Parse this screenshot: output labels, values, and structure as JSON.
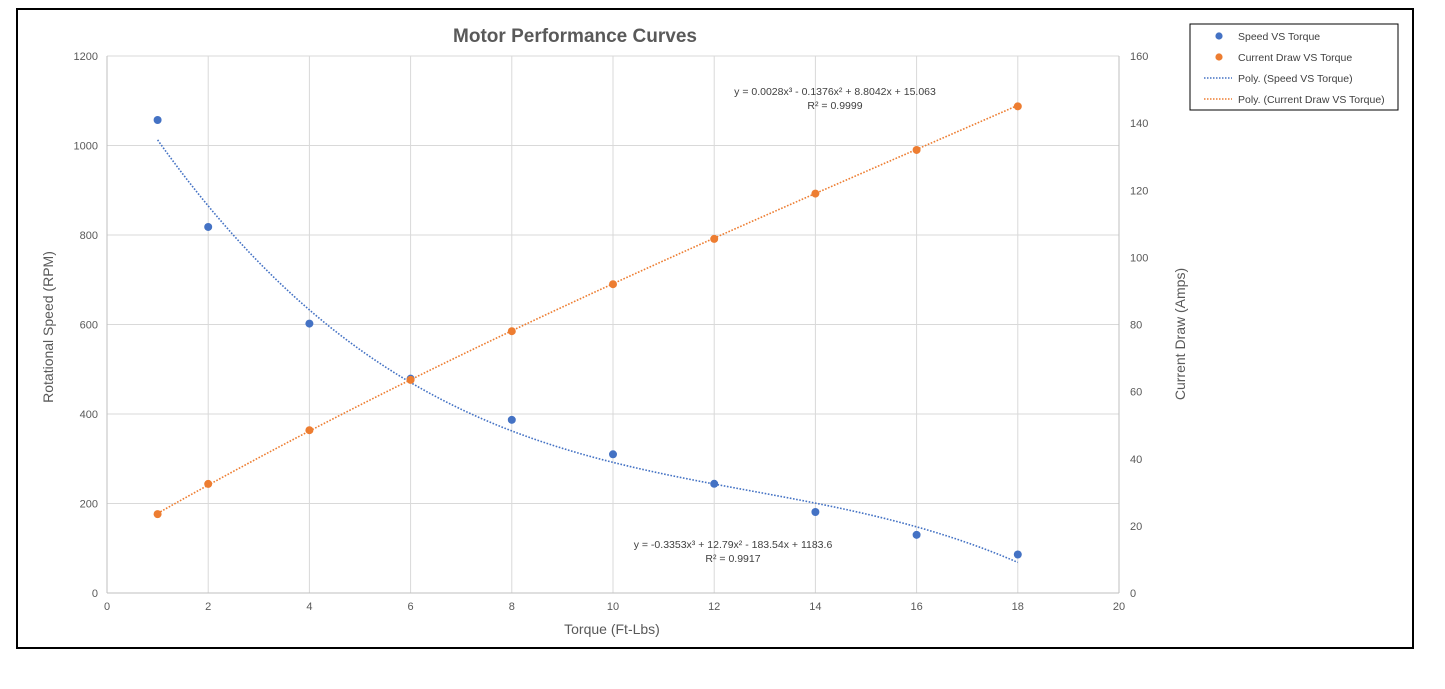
{
  "chart_data": {
    "type": "scatter",
    "title": "Motor Performance Curves",
    "xlabel": "Torque (Ft-Lbs)",
    "ylabel": "Rotational Speed (RPM)",
    "y2label": "Current Draw (Amps)",
    "xlim": [
      0,
      20
    ],
    "ylim": [
      0,
      1200
    ],
    "y2lim": [
      0,
      160
    ],
    "xticks": [
      0,
      2,
      4,
      6,
      8,
      10,
      12,
      14,
      16,
      18,
      20
    ],
    "yticks": [
      0,
      200,
      400,
      600,
      800,
      1000,
      1200
    ],
    "y2ticks": [
      0,
      20,
      40,
      60,
      80,
      100,
      120,
      140,
      160
    ],
    "grid": true,
    "legend_position": "top-right",
    "colors": {
      "speed": "#4472C4",
      "current": "#ED7D31",
      "frame": "#000000",
      "grid": "#d9d9d9",
      "axis": "#bfbfbf"
    },
    "series": [
      {
        "name": "Speed VS Torque",
        "axis": "left",
        "x": [
          1,
          2,
          4,
          6,
          8,
          10,
          12,
          14,
          16,
          18
        ],
        "y": [
          1057,
          818,
          602,
          479,
          387,
          310,
          244,
          181,
          130,
          86
        ]
      },
      {
        "name": "Current Draw VS Torque",
        "axis": "right",
        "x": [
          1,
          2,
          4,
          6,
          8,
          10,
          12,
          14,
          16,
          18
        ],
        "y": [
          23.5,
          32.5,
          48.5,
          63.5,
          78,
          92,
          105.5,
          119,
          132,
          145
        ]
      }
    ],
    "trendlines": [
      {
        "name": "Poly. (Speed VS Torque)",
        "axis": "left",
        "coefficients": [
          -0.3353,
          12.79,
          -183.54,
          1183.6
        ],
        "x_range": [
          1,
          18
        ],
        "equation": "y = -0.3353x³ + 12.79x² - 183.54x + 1183.6",
        "r_squared": "R² = 0.9917"
      },
      {
        "name": "Poly. (Current Draw VS Torque)",
        "axis": "right",
        "coefficients": [
          0.0028,
          -0.1376,
          8.8042,
          15.063
        ],
        "x_range": [
          1,
          18
        ],
        "equation": "y = 0.0028x³ - 0.1376x² + 8.8042x + 15.063",
        "r_squared": "R² = 0.9999"
      }
    ],
    "legend": [
      "Speed VS Torque",
      "Current Draw VS Torque",
      "Poly. (Speed VS Torque)",
      "Poly. (Current Draw VS Torque)"
    ]
  }
}
